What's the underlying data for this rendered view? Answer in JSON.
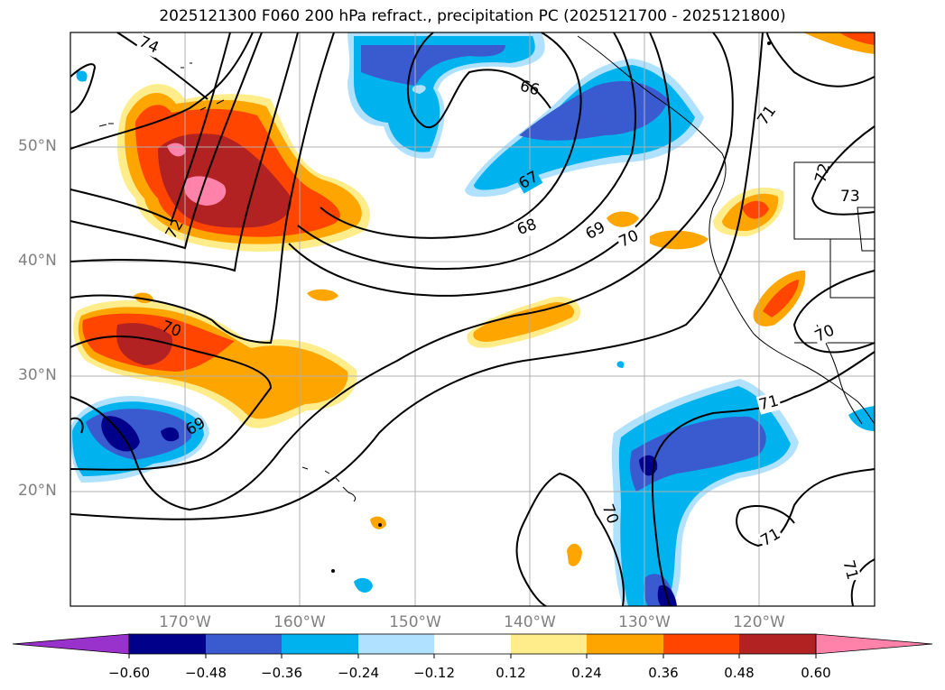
{
  "title": "2025121300 F060 200 hPa refract., precipitation PC (2025121700 - 2025121800)",
  "map": {
    "lat_labels": [
      "50°N",
      "40°N",
      "30°N",
      "20°N"
    ],
    "lon_labels": [
      "170°W",
      "160°W",
      "150°W",
      "140°W",
      "130°W",
      "120°W"
    ],
    "contour_labels": [
      "74",
      "66",
      "67",
      "68",
      "69",
      "70",
      "72",
      "73",
      "71",
      "70",
      "69",
      "70",
      "70",
      "71",
      "71",
      "71",
      "72"
    ],
    "grid": true,
    "coastlines": true
  },
  "colorbar": {
    "ticks": [
      "−0.60",
      "−0.48",
      "−0.36",
      "−0.24",
      "−0.12",
      "0.12",
      "0.24",
      "0.36",
      "0.48",
      "0.60"
    ],
    "colors": [
      "#9932cc",
      "#00008b",
      "#3a5bd0",
      "#00b2ee",
      "#b0e2ff",
      "#ffffff",
      "#ffec8b",
      "#ffa500",
      "#ff4500",
      "#b22222",
      "#ff82ab"
    ],
    "extend": "both"
  }
}
